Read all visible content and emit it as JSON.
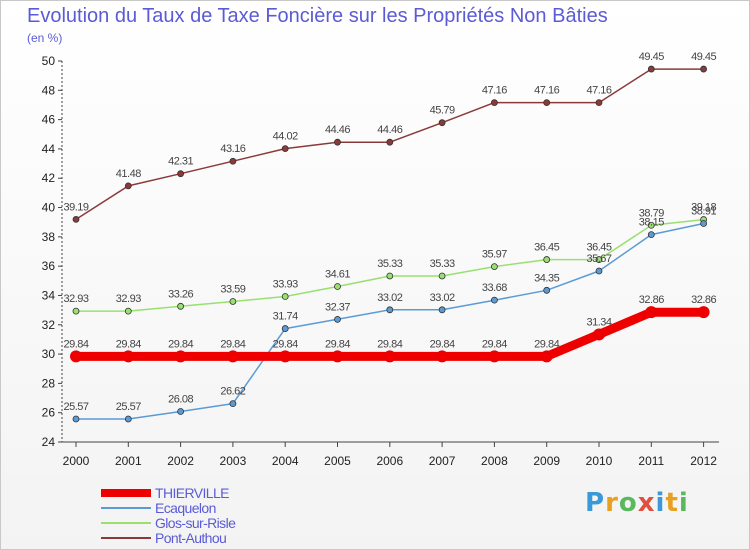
{
  "chart_data": {
    "type": "line",
    "title": "Evolution du Taux de Taxe Foncière sur les Propriétés Non Bâties",
    "unit_label": "(en %)",
    "x": [
      "2000",
      "2001",
      "2002",
      "2003",
      "2004",
      "2005",
      "2006",
      "2007",
      "2008",
      "2009",
      "2010",
      "2011",
      "2012"
    ],
    "ylim": [
      24,
      50
    ],
    "yticks": [
      24,
      26,
      28,
      30,
      32,
      34,
      36,
      38,
      40,
      42,
      44,
      46,
      48,
      50
    ],
    "grid": false,
    "legend_position": "bottom-left",
    "series": [
      {
        "name": "THIERVILLE",
        "color": "#ee0000",
        "values": [
          29.84,
          29.84,
          29.84,
          29.84,
          29.84,
          29.84,
          29.84,
          29.84,
          29.84,
          29.84,
          31.34,
          32.86,
          32.86
        ],
        "labels": [
          "29.84",
          "29.84",
          "29.84",
          "29.84",
          "29.84",
          "29.84",
          "29.84",
          "29.84",
          "29.84",
          "29.84",
          "31.34",
          "32.86",
          "32.86"
        ]
      },
      {
        "name": "Ecaquelon",
        "color": "#5b9bd5",
        "values": [
          25.57,
          25.57,
          26.08,
          26.62,
          31.74,
          32.37,
          33.02,
          33.02,
          33.68,
          34.35,
          35.67,
          38.15,
          38.91
        ],
        "labels": [
          "25.57",
          "25.57",
          "26.08",
          "26.62",
          "31.74",
          "32.37",
          "33.02",
          "33.02",
          "33.68",
          "34.35",
          "35.67",
          "38.15",
          "38.91"
        ]
      },
      {
        "name": "Glos-sur-Risle",
        "color": "#99e070",
        "values": [
          32.93,
          32.93,
          33.26,
          33.59,
          33.93,
          34.61,
          35.33,
          35.33,
          35.97,
          36.45,
          36.45,
          38.79,
          39.18
        ],
        "labels": [
          "32.93",
          "32.93",
          "33.26",
          "33.59",
          "33.93",
          "34.61",
          "35.33",
          "35.33",
          "35.97",
          "36.45",
          "36.45",
          "38.79",
          "39.18"
        ]
      },
      {
        "name": "Pont-Authou",
        "color": "#8b3a3a",
        "values": [
          39.19,
          41.48,
          42.31,
          43.16,
          44.02,
          44.46,
          44.46,
          45.79,
          47.16,
          47.16,
          47.16,
          49.45,
          49.45
        ],
        "labels": [
          "39.19",
          "41.48",
          "42.31",
          "43.16",
          "44.02",
          "44.46",
          "44.46",
          "45.79",
          "47.16",
          "47.16",
          "47.16",
          "49.45",
          "49.45"
        ]
      }
    ]
  },
  "brand": {
    "letters": [
      "P",
      "r",
      "o",
      "x",
      "i",
      "t",
      "i"
    ],
    "colors": [
      "#3a9ad9",
      "#e8a020",
      "#5cb85c",
      "#e05040",
      "#3a9ad9",
      "#e8a020",
      "#5cb85c"
    ]
  }
}
